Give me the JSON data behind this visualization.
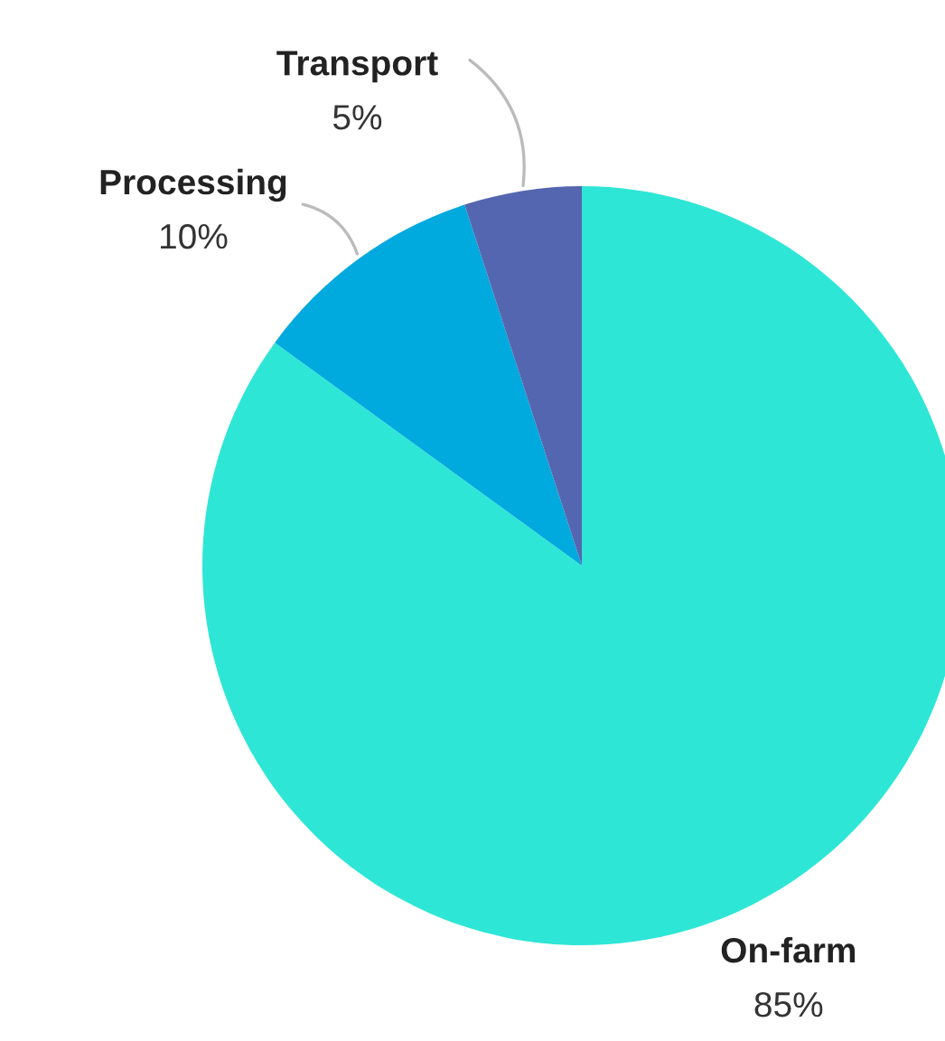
{
  "chart_data": {
    "type": "pie",
    "categories": [
      "On-farm",
      "Processing",
      "Transport"
    ],
    "values": [
      85,
      10,
      5
    ],
    "colors": [
      "#2ee6d6",
      "#00a9de",
      "#5566b0"
    ],
    "value_labels": [
      "85%",
      "10%",
      "5%"
    ]
  }
}
